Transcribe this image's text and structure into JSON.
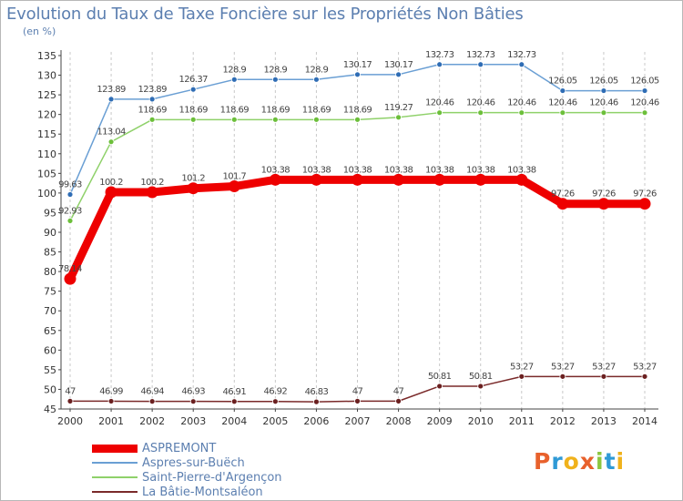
{
  "header": {
    "title": "Evolution du Taux de Taxe Foncière sur les Propriétés Non Bâties",
    "unit": "(en %)"
  },
  "brand": {
    "text": "Proxiti",
    "colors": [
      "#e8612c",
      "#2f9ad6",
      "#f0b21c",
      "#e8612c",
      "#8cc63f",
      "#2f9ad6",
      "#f0b21c"
    ]
  },
  "chart_data": {
    "type": "line",
    "title": "Evolution du Taux de Taxe Foncière sur les Propriétés Non Bâties",
    "ylabel": "(en %)",
    "xlabel": "",
    "ylim": [
      45,
      135
    ],
    "ytick_step": 5,
    "grid": "vertical",
    "categories": [
      "2000",
      "2001",
      "2002",
      "2003",
      "2004",
      "2005",
      "2006",
      "2007",
      "2008",
      "2009",
      "2010",
      "2011",
      "2012",
      "2013",
      "2014"
    ],
    "series": [
      {
        "name": "ASPREMONT",
        "color": "#ee0000",
        "marker": "#ee0000",
        "width": "thick",
        "values": [
          78.14,
          100.2,
          100.2,
          101.2,
          101.7,
          103.38,
          103.38,
          103.38,
          103.38,
          103.38,
          103.38,
          103.38,
          97.26,
          97.26,
          97.26
        ],
        "labels": [
          "78.14",
          "100.2",
          "100.2",
          "101.2",
          "101.7",
          "103.38",
          "103.38",
          "103.38",
          "103.38",
          "103.38",
          "103.38",
          "103.38",
          "97.26",
          "97.26",
          "97.26"
        ]
      },
      {
        "name": "Aspres-sur-Buëch",
        "color": "#6a9fd4",
        "marker": "#2f6db5",
        "width": "thin",
        "values": [
          99.63,
          123.89,
          123.89,
          126.37,
          128.9,
          128.9,
          128.9,
          130.17,
          130.17,
          132.73,
          132.73,
          132.73,
          126.05,
          126.05,
          126.05
        ],
        "labels": [
          "99.63",
          "123.89",
          "123.89",
          "126.37",
          "128.9",
          "128.9",
          "128.9",
          "130.17",
          "130.17",
          "132.73",
          "132.73",
          "132.73",
          "126.05",
          "126.05",
          "126.05"
        ]
      },
      {
        "name": "Saint-Pierre-d'Argençon",
        "color": "#8fd16a",
        "marker": "#6cbf3a",
        "width": "thin",
        "values": [
          92.93,
          113.04,
          118.69,
          118.69,
          118.69,
          118.69,
          118.69,
          118.69,
          119.27,
          120.46,
          120.46,
          120.46,
          120.46,
          120.46,
          120.46
        ],
        "labels": [
          "92.93",
          "113.04",
          "118.69",
          "118.69",
          "118.69",
          "118.69",
          "118.69",
          "118.69",
          "119.27",
          "120.46",
          "120.46",
          "120.46",
          "120.46",
          "120.46",
          "120.46"
        ]
      },
      {
        "name": "La Bâtie-Montsaléon",
        "color": "#7a2a2a",
        "marker": "#6b2020",
        "width": "thin",
        "values": [
          47,
          46.99,
          46.94,
          46.93,
          46.91,
          46.92,
          46.83,
          47,
          47,
          50.81,
          50.81,
          53.27,
          53.27,
          53.27,
          53.27
        ],
        "labels": [
          "47",
          "46.99",
          "46.94",
          "46.93",
          "46.91",
          "46.92",
          "46.83",
          "47",
          "47",
          "50.81",
          "50.81",
          "53.27",
          "53.27",
          "53.27",
          "53.27"
        ]
      }
    ]
  }
}
